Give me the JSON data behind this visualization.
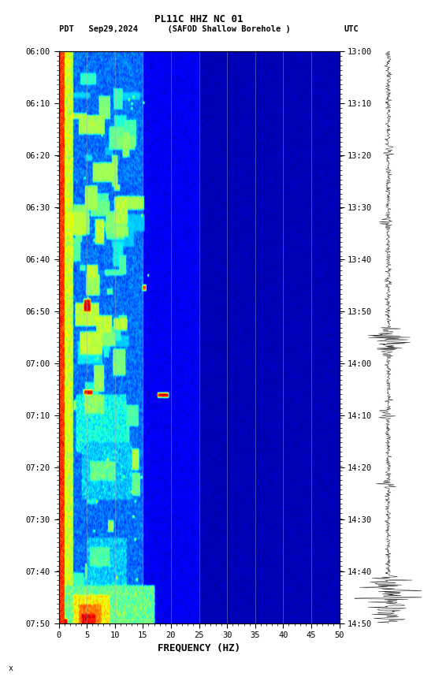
{
  "title_line1": "PL11C HHZ NC 01",
  "title_line2_left": "PDT   Sep29,2024      (SAFOD Shallow Borehole )",
  "title_line2_right": "UTC",
  "xlabel": "FREQUENCY (HZ)",
  "freq_min": 0,
  "freq_max": 50,
  "freq_ticks": [
    0,
    5,
    10,
    15,
    20,
    25,
    30,
    35,
    40,
    45,
    50
  ],
  "time_labels_left": [
    "06:00",
    "06:10",
    "06:20",
    "06:30",
    "06:40",
    "06:50",
    "07:00",
    "07:10",
    "07:20",
    "07:30",
    "07:40",
    "07:50"
  ],
  "time_labels_right": [
    "13:00",
    "13:10",
    "13:20",
    "13:30",
    "13:40",
    "13:50",
    "14:00",
    "14:10",
    "14:20",
    "14:30",
    "14:40",
    "14:50"
  ],
  "n_time_steps": 600,
  "n_freq_steps": 500,
  "colormap": "jet",
  "figure_width": 5.52,
  "figure_height": 8.64,
  "dpi": 100,
  "watermark_text": "x",
  "grid_freqs": [
    5,
    10,
    15,
    20,
    25,
    30,
    35,
    40,
    45
  ]
}
